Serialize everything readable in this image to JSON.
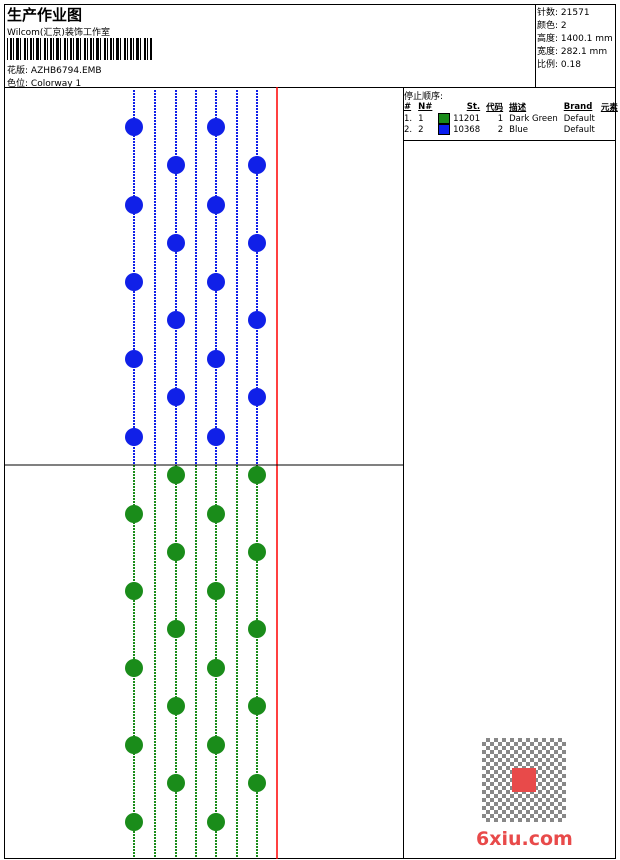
{
  "header": {
    "title": "生产作业图",
    "company": "Wilcom(汇京)装饰工作室",
    "design_label": "花版:",
    "design_value": "AZHB6794.EMB",
    "colorway_label": "色位:",
    "colorway_value": "Colorway 1"
  },
  "stats": [
    {
      "label": "针数:",
      "value": "21571"
    },
    {
      "label": "颜色:",
      "value": "2"
    },
    {
      "label": "高度:",
      "value": "1400.1 mm"
    },
    {
      "label": "宽度:",
      "value": "282.1 mm"
    },
    {
      "label": "比例:",
      "value": "0.18"
    }
  ],
  "stop_sequence": {
    "title": "停止顺序:",
    "headers": [
      "#",
      "N#",
      "St.",
      "代码",
      "描述",
      "Brand",
      "元素"
    ],
    "rows": [
      {
        "idx": "1.",
        "n": "1",
        "color": "#1a8c1a",
        "st": "11201",
        "code": "1",
        "desc": "Dark Green",
        "brand": "Default"
      },
      {
        "idx": "2.",
        "n": "2",
        "color": "#0a1ef0",
        "st": "10368",
        "code": "2",
        "desc": "Blue",
        "brand": "Default"
      }
    ]
  },
  "colors": {
    "blue": "#1020e8",
    "green": "#1a8c1a",
    "red": "#ff0000"
  },
  "watermark": "6xiu.com"
}
